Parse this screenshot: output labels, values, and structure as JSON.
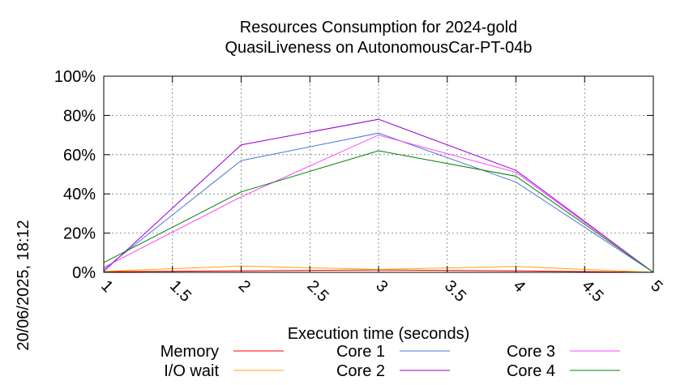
{
  "chart_data": {
    "type": "line",
    "title": "Resources Consumption for 2024-gold",
    "subtitle": "QuasiLiveness on AutonomousCar-PT-04b",
    "xlabel": "Execution time (seconds)",
    "ylabel": "",
    "side_label": "20/06/2025, 18:12",
    "xlim": [
      1,
      5
    ],
    "ylim": [
      0,
      100
    ],
    "x_ticks": [
      1,
      1.5,
      2,
      2.5,
      3,
      3.5,
      4,
      4.5,
      5
    ],
    "x_tick_labels": [
      "1",
      "1.5",
      "2",
      "2.5",
      "3",
      "3.5",
      "4",
      "4.5",
      "5"
    ],
    "y_ticks": [
      0,
      20,
      40,
      60,
      80,
      100
    ],
    "y_tick_labels": [
      "0%",
      "20%",
      "40%",
      "60%",
      "80%",
      "100%"
    ],
    "grid": true,
    "legend_position": "bottom",
    "x": [
      1,
      2,
      3,
      4,
      5
    ],
    "series": [
      {
        "name": "Memory",
        "color": "#ff0000",
        "values": [
          0.3,
          0.8,
          1.2,
          0.8,
          0
        ]
      },
      {
        "name": "I/O wait",
        "color": "#ffa500",
        "values": [
          0.5,
          3.2,
          1.5,
          3.0,
          0
        ]
      },
      {
        "name": "Core 1",
        "color": "#4a79d6",
        "values": [
          1.5,
          57,
          71,
          46,
          0
        ]
      },
      {
        "name": "Core 2",
        "color": "#9400d3",
        "values": [
          0.5,
          65,
          78,
          52,
          0
        ]
      },
      {
        "name": "Core 3",
        "color": "#ff40ff",
        "values": [
          2.5,
          38.5,
          70,
          51,
          0
        ]
      },
      {
        "name": "Core 4",
        "color": "#008000",
        "values": [
          5,
          41,
          62,
          49,
          0
        ]
      }
    ]
  }
}
